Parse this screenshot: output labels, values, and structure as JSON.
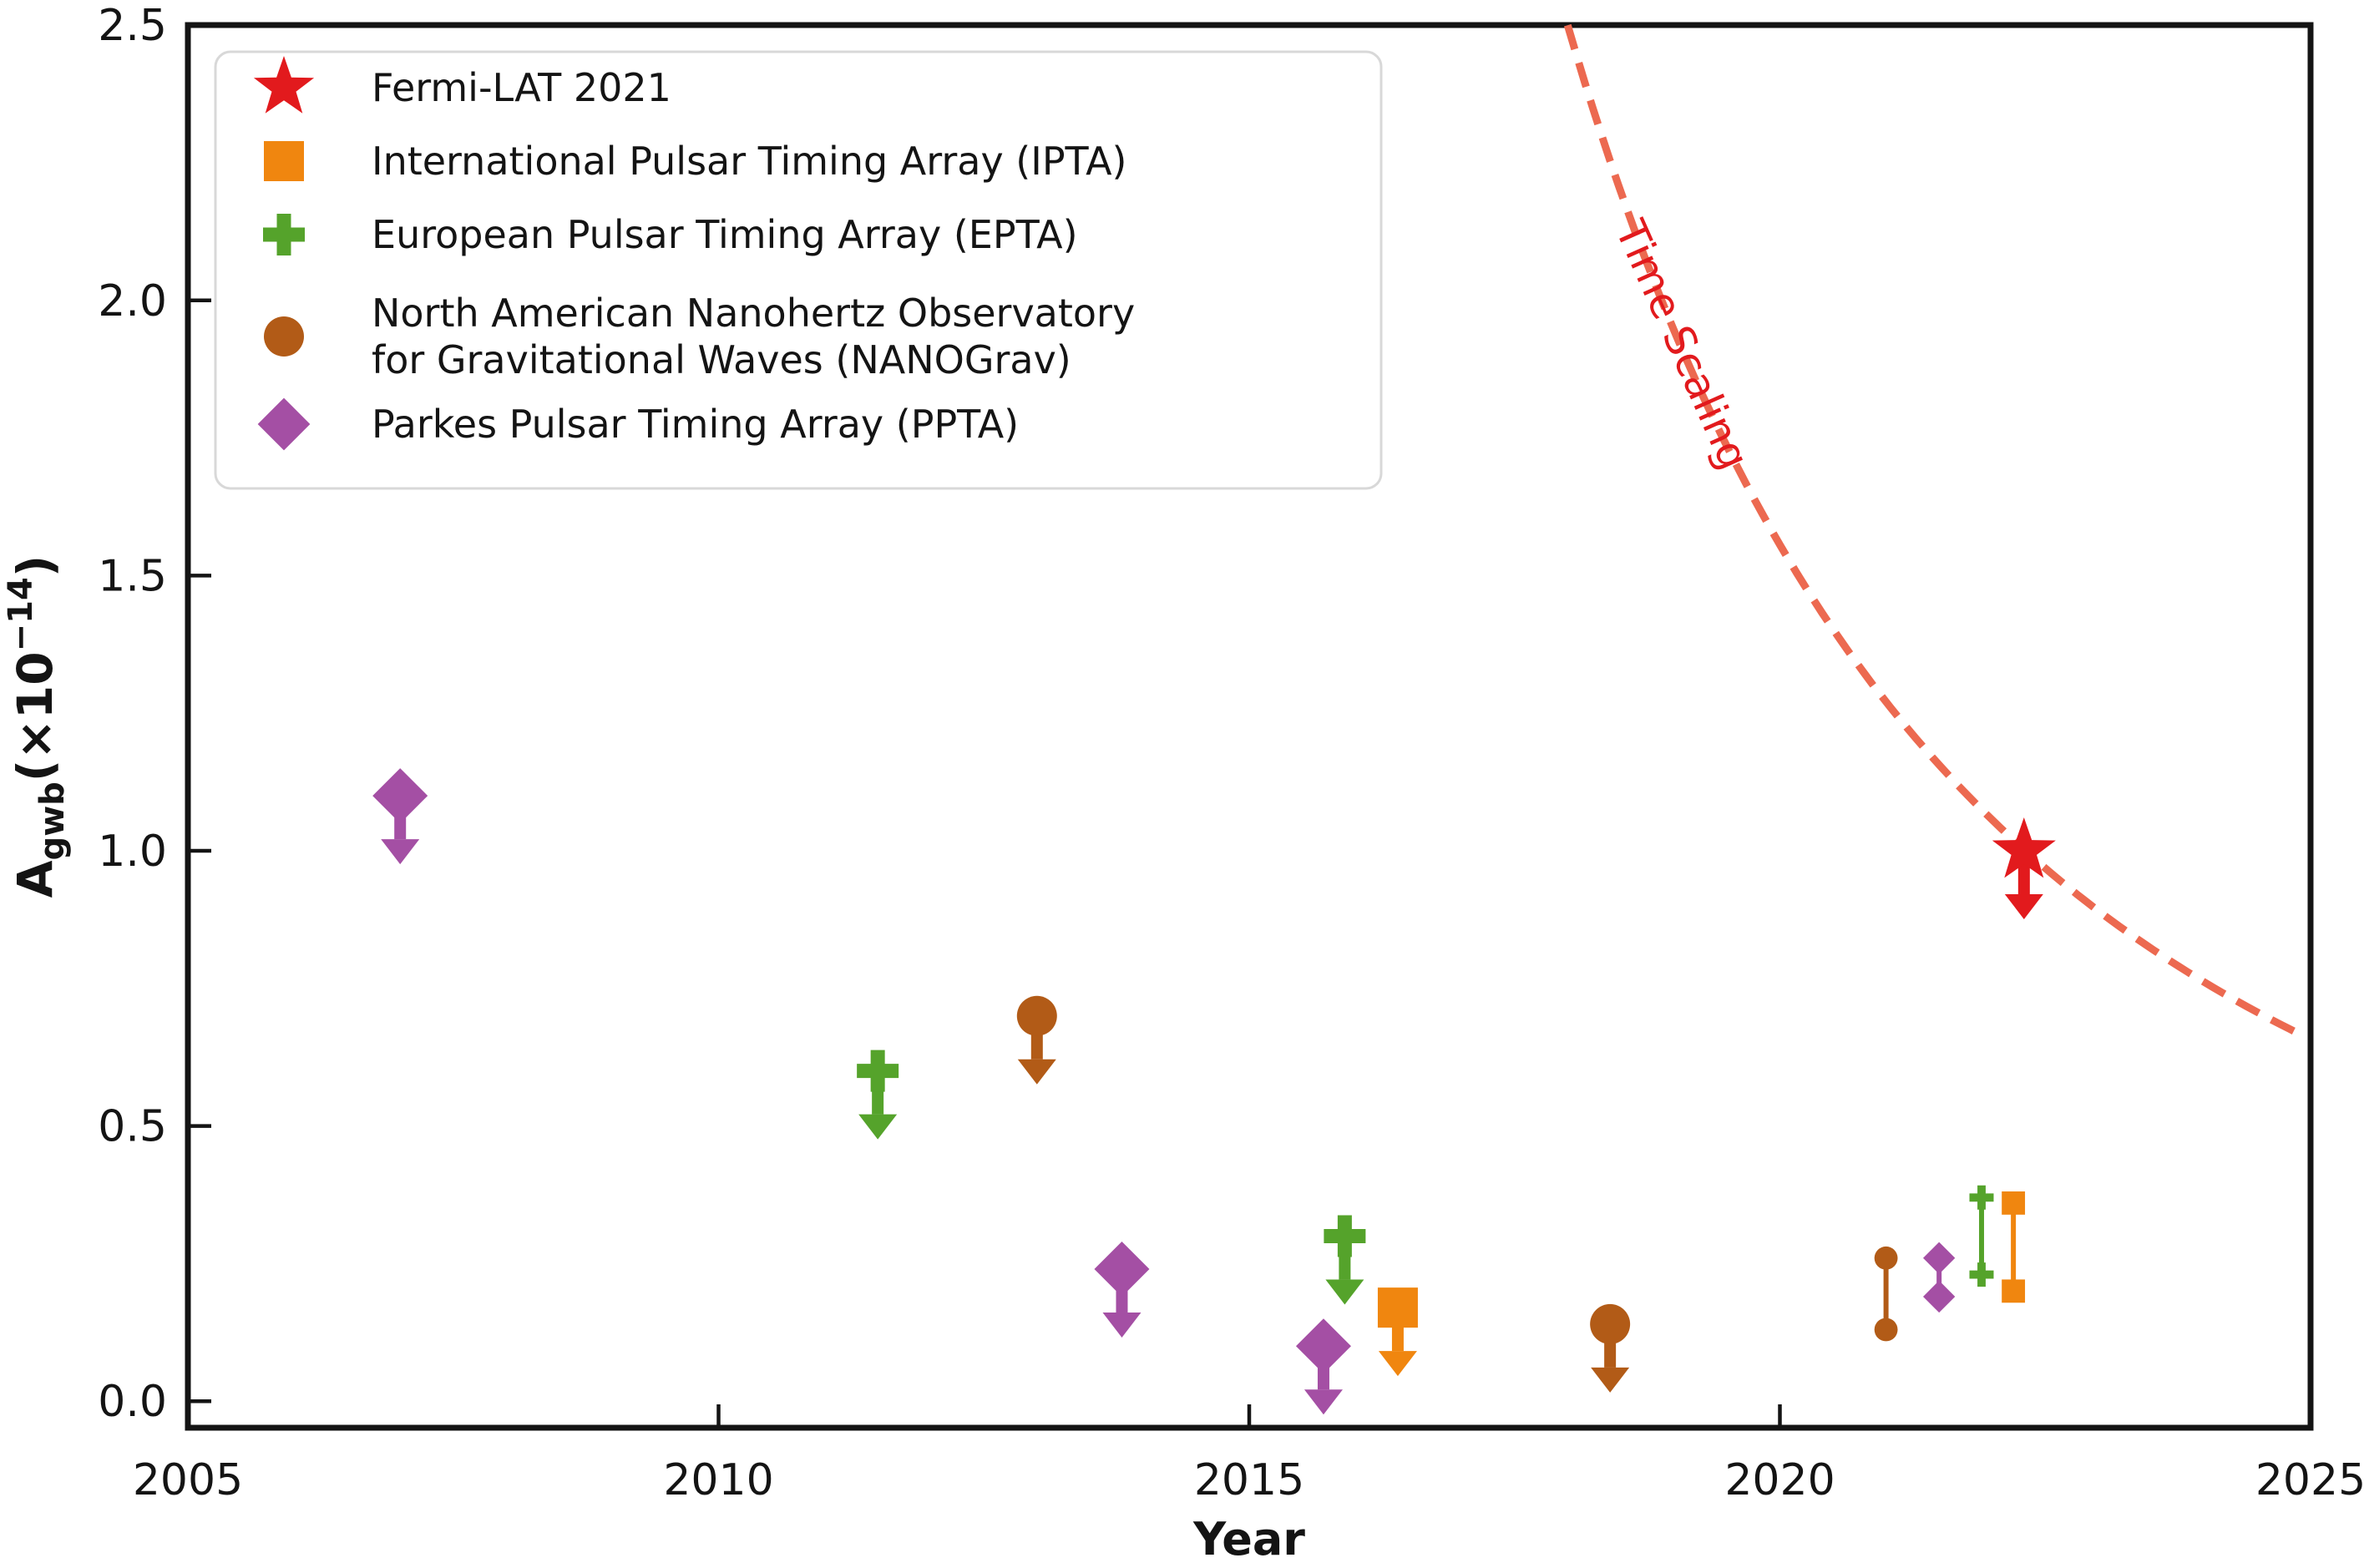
{
  "chart_data": {
    "type": "scatter",
    "title": "",
    "xlabel": "Year",
    "ylabel": "A_gwb(×10⁻¹⁴)",
    "ylabel_parts": {
      "base": "A",
      "sub": "gwb",
      "mid": "(×10",
      "sup": "−14",
      "close": ")"
    },
    "xlim": [
      2005,
      2025
    ],
    "ylim": [
      -0.05,
      2.5
    ],
    "xtick_values": [
      2005,
      2010,
      2015,
      2020,
      2025
    ],
    "xtick_labels": [
      "2005",
      "2010",
      "2015",
      "2020",
      "2025"
    ],
    "ytick_values": [
      0.0,
      0.5,
      1.0,
      1.5,
      2.0,
      2.5
    ],
    "ytick_labels": [
      "0.0",
      "0.5",
      "1.0",
      "1.5",
      "2.0",
      "2.5"
    ],
    "grid": false,
    "legend_position": "upper left",
    "series": [
      {
        "name": "Fermi-LAT 2021",
        "marker": "star",
        "color": "#e21a1d",
        "upper_limits": [
          {
            "x": 2022.3,
            "y": 1.0
          }
        ],
        "ranges": []
      },
      {
        "name": "International Pulsar Timing Array (IPTA)",
        "marker": "square",
        "color": "#f0860f",
        "upper_limits": [
          {
            "x": 2016.4,
            "y": 0.17
          }
        ],
        "ranges": [
          {
            "x": 2022.2,
            "y_low": 0.2,
            "y_high": 0.36
          }
        ]
      },
      {
        "name": "European Pulsar Timing Array (EPTA)",
        "marker": "plus",
        "color": "#55a32b",
        "upper_limits": [
          {
            "x": 2011.5,
            "y": 0.6
          },
          {
            "x": 2015.9,
            "y": 0.3
          }
        ],
        "ranges": [
          {
            "x": 2021.9,
            "y_low": 0.23,
            "y_high": 0.37
          }
        ]
      },
      {
        "name": "North American Nanohertz Observatory for Gravitational Waves (NANOGrav)",
        "marker": "circle",
        "color": "#b25b17",
        "upper_limits": [
          {
            "x": 2013.0,
            "y": 0.7
          },
          {
            "x": 2018.4,
            "y": 0.14
          }
        ],
        "ranges": [
          {
            "x": 2021.0,
            "y_low": 0.13,
            "y_high": 0.26
          }
        ]
      },
      {
        "name": "Parkes Pulsar Timing Array (PPTA)",
        "marker": "diamond",
        "color": "#a44fa4",
        "upper_limits": [
          {
            "x": 2007.0,
            "y": 1.1
          },
          {
            "x": 2013.8,
            "y": 0.24
          },
          {
            "x": 2015.7,
            "y": 0.1
          }
        ],
        "ranges": [
          {
            "x": 2021.5,
            "y_low": 0.19,
            "y_high": 0.26
          }
        ]
      }
    ],
    "curve": {
      "label": "Time Scaling",
      "style": "dashed",
      "color": "#ec6950",
      "label_color": "#e21a1d",
      "model": "A(t) = amplitude * (t - t0)^exponent",
      "amplitude": 207.5,
      "t0": 2010,
      "exponent": -2.125,
      "t_start": 2018.0,
      "t_end": 2025.0
    },
    "annotation": {
      "text": "Time Scaling",
      "x": 2018.96,
      "y": 1.91,
      "rotation_deg": 66
    }
  },
  "legend": {
    "lines": [
      "Fermi-LAT 2021",
      "International Pulsar Timing Array (IPTA)",
      "European Pulsar Timing Array (EPTA)",
      "North American Nanohertz Observatory",
      " for Gravitational Waves (NANOGrav)",
      "Parkes Pulsar Timing Array (PPTA)"
    ]
  },
  "colors": {
    "frame": "#141414",
    "legend_border": "#d8d8d8",
    "background": "#ffffff"
  }
}
